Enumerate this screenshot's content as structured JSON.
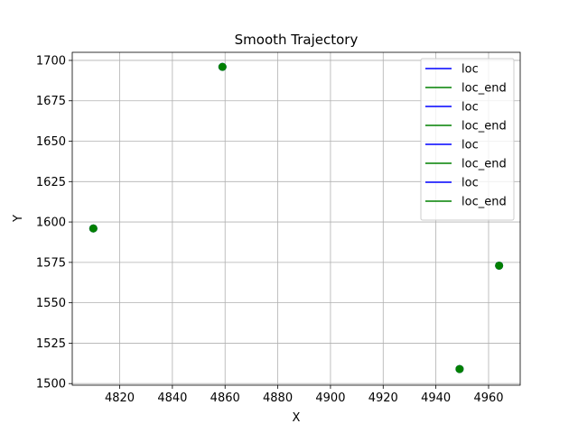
{
  "chart_data": {
    "type": "scatter",
    "title": "Smooth Trajectory",
    "xlabel": "X",
    "ylabel": "Y",
    "xlim": [
      4802,
      4972
    ],
    "ylim": [
      1499,
      1705
    ],
    "xticks": [
      4820,
      4840,
      4860,
      4880,
      4900,
      4920,
      4940,
      4960
    ],
    "yticks": [
      1500,
      1525,
      1550,
      1575,
      1600,
      1625,
      1650,
      1675,
      1700
    ],
    "grid": true,
    "legend_position": "top-right",
    "series": [
      {
        "name": "loc",
        "color": "#0000ff",
        "x": [
          4810,
          4859,
          4949,
          4964
        ],
        "y": [
          1596,
          1696,
          1509,
          1573
        ]
      },
      {
        "name": "loc_end",
        "color": "#008000",
        "x": [
          4810,
          4859,
          4949,
          4964
        ],
        "y": [
          1596,
          1696,
          1509,
          1573
        ]
      }
    ],
    "legend": [
      {
        "label": "loc",
        "color": "#0000ff"
      },
      {
        "label": "loc_end",
        "color": "#008000"
      },
      {
        "label": "loc",
        "color": "#0000ff"
      },
      {
        "label": "loc_end",
        "color": "#008000"
      },
      {
        "label": "loc",
        "color": "#0000ff"
      },
      {
        "label": "loc_end",
        "color": "#008000"
      },
      {
        "label": "loc",
        "color": "#0000ff"
      },
      {
        "label": "loc_end",
        "color": "#008000"
      }
    ]
  }
}
